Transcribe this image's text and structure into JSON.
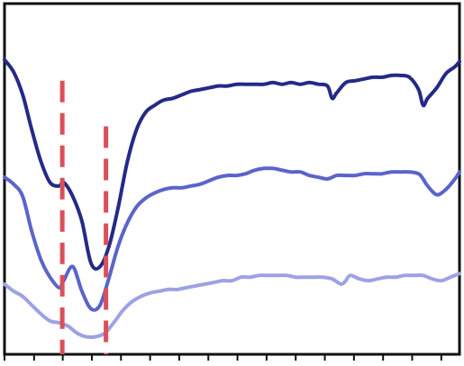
{
  "chart_data": {
    "type": "line",
    "title": "",
    "xlabel": "",
    "ylabel": "",
    "xlim": [
      0,
      100
    ],
    "ylim": [
      0,
      100
    ],
    "x_ticks": [
      0,
      6.5,
      12.8,
      19.2,
      25.6,
      32.0,
      38.4,
      44.8,
      51.2,
      57.6,
      64.0,
      70.4,
      76.8,
      83.2,
      89.6,
      96.0
    ],
    "grid": false,
    "legend": "none",
    "series": [
      {
        "color": "#242a86",
        "x": [
          0,
          2,
          4,
          6,
          8,
          10,
          12,
          13,
          15,
          17,
          19,
          21,
          23,
          25,
          27,
          29,
          31,
          33,
          35,
          37,
          39,
          41,
          43,
          45,
          47,
          49,
          51,
          53,
          55,
          57,
          59,
          61,
          63,
          65,
          67,
          69,
          71,
          72,
          73,
          75,
          77,
          79,
          81,
          83,
          85,
          87,
          89,
          91,
          92,
          93,
          95,
          97,
          99,
          100
        ],
        "y": [
          84,
          80.5,
          74,
          64,
          55,
          49,
          48,
          49,
          45,
          38,
          26,
          25,
          31,
          42,
          55,
          64,
          69,
          71,
          72.5,
          73,
          74,
          75,
          75.5,
          76,
          76.5,
          76.5,
          77,
          77,
          77,
          77,
          77.5,
          77,
          77.5,
          77,
          77.5,
          77,
          76.5,
          73,
          74.5,
          77.5,
          78,
          78.5,
          79,
          79,
          79.5,
          79.5,
          79,
          75.5,
          71,
          73,
          76,
          80,
          82,
          83.5
        ]
      },
      {
        "color": "#5a64cb",
        "x": [
          0,
          2,
          4,
          6,
          8,
          10,
          12,
          13,
          15,
          17,
          19,
          21,
          23,
          25,
          27,
          29,
          31,
          33,
          35,
          37,
          39,
          41,
          43,
          45,
          47,
          49,
          51,
          53,
          55,
          57,
          59,
          61,
          63,
          65,
          67,
          69,
          71,
          73,
          75,
          77,
          79,
          81,
          83,
          85,
          87,
          89,
          91,
          92,
          93,
          95,
          97,
          99,
          100
        ],
        "y": [
          50.5,
          48.5,
          45,
          35,
          27,
          22,
          19,
          21,
          25,
          18,
          13,
          14,
          22,
          31,
          37.5,
          42,
          44.5,
          46,
          47,
          47.5,
          47.5,
          48,
          48.5,
          49.5,
          50.5,
          51,
          51,
          51.5,
          52.5,
          53,
          53,
          52.5,
          52,
          52,
          51,
          50.5,
          50,
          51,
          51,
          51,
          51.5,
          51.5,
          51.5,
          52,
          52,
          52,
          51.5,
          50,
          48,
          45.5,
          47,
          50,
          52
        ]
      },
      {
        "color": "#9da2e4",
        "x": [
          0,
          2,
          4,
          6,
          8,
          10,
          12,
          14,
          16,
          18,
          20,
          22,
          24,
          26,
          28,
          30,
          32,
          34,
          36,
          38,
          40,
          42,
          44,
          46,
          48,
          50,
          52,
          54,
          56,
          58,
          60,
          62,
          64,
          66,
          68,
          70,
          72,
          74,
          75,
          76,
          78,
          80,
          82,
          84,
          86,
          88,
          90,
          92,
          94,
          96,
          98,
          100
        ],
        "y": [
          20,
          18,
          16.5,
          14,
          11.5,
          9.5,
          9,
          8,
          6,
          5,
          5,
          6,
          9,
          12.5,
          15,
          16.5,
          17.5,
          18,
          18.5,
          18.5,
          19,
          19.5,
          20,
          20.5,
          21,
          21,
          22,
          22,
          22.5,
          22.5,
          22.5,
          22.5,
          22,
          22,
          22,
          22,
          21.5,
          20,
          21,
          22.5,
          21.5,
          21,
          21.5,
          22,
          22,
          22.5,
          22.5,
          22.5,
          21.5,
          21,
          22,
          23
        ]
      }
    ],
    "annotations": [
      {
        "type": "vertical-dashed-line",
        "x": 12.7,
        "y_from": 0,
        "y_to": 78,
        "color": "#d9505a"
      },
      {
        "type": "vertical-dashed-line",
        "x": 22.3,
        "y_from": 0,
        "y_to": 65,
        "color": "#d9505a"
      }
    ]
  }
}
